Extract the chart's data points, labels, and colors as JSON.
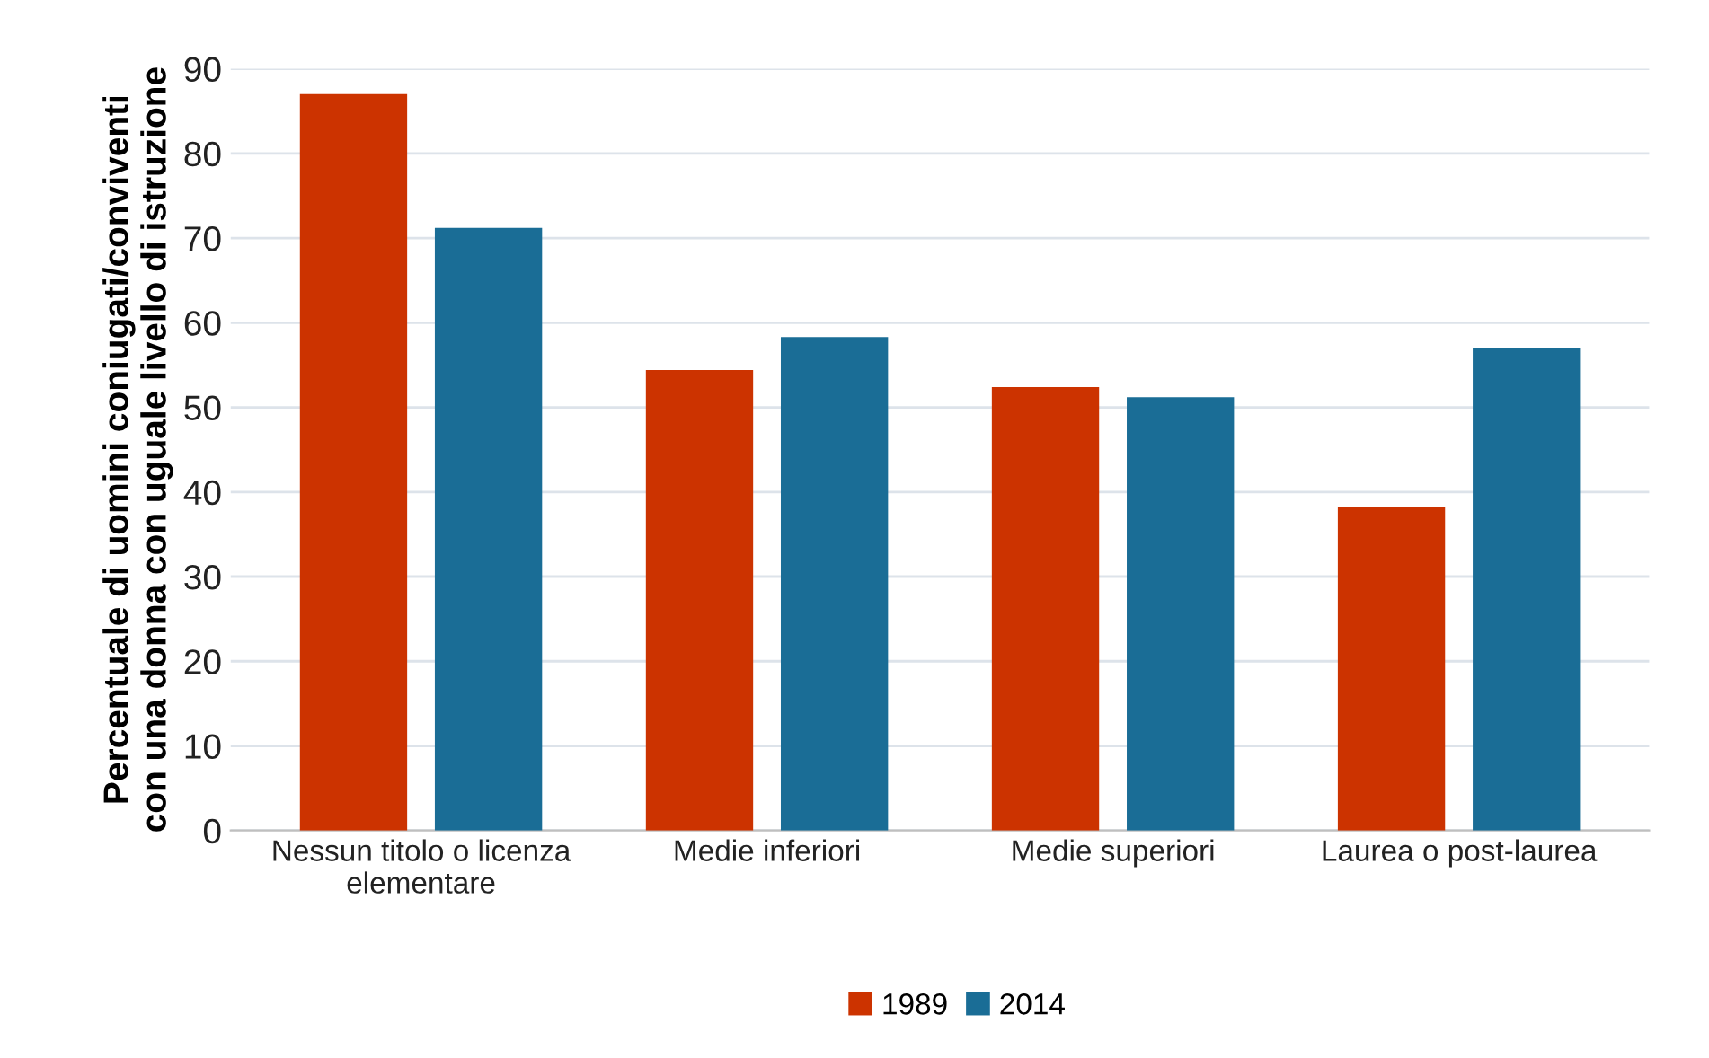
{
  "chart_data": {
    "type": "bar",
    "ylabel": "Percentuale di uomini coniugati/conviventi\ncon una donna con uguale livello di istruzione",
    "categories": [
      "Nessun titolo o licenza\nelementare",
      "Medie inferiori",
      "Medie superiori",
      "Laurea o post-laurea"
    ],
    "series": [
      {
        "name": "1989",
        "color": "#cc3300",
        "values": [
          87,
          54.4,
          52.4,
          38.2
        ]
      },
      {
        "name": "2014",
        "color": "#1a6d96",
        "values": [
          71.2,
          58.3,
          51.2,
          57
        ]
      }
    ],
    "ylim": [
      0,
      90
    ],
    "yticks": [
      0,
      10,
      20,
      30,
      40,
      50,
      60,
      70,
      80,
      90
    ],
    "grid": "y",
    "legend": "bottom"
  }
}
